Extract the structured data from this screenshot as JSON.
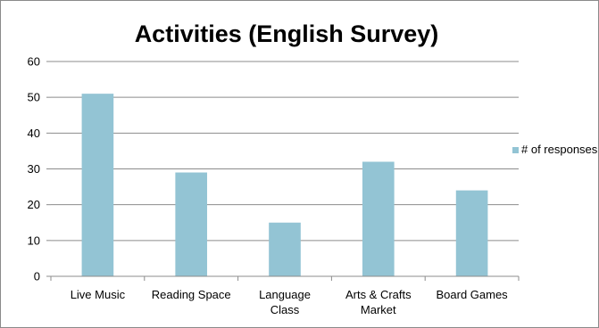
{
  "chart_data": {
    "type": "bar",
    "title": "Activities (English Survey)",
    "categories": [
      [
        "Live Music"
      ],
      [
        "Reading Space"
      ],
      [
        "Language",
        "Class"
      ],
      [
        "Arts & Crafts",
        "Market"
      ],
      [
        "Board Games"
      ]
    ],
    "series": [
      {
        "name": "# of responses",
        "values": [
          51,
          29,
          15,
          32,
          24
        ],
        "color": "#93c4d4"
      }
    ],
    "ylim": [
      0,
      60
    ],
    "yticks": [
      0,
      10,
      20,
      30,
      40,
      50,
      60
    ],
    "grid": true,
    "legend": "right"
  }
}
